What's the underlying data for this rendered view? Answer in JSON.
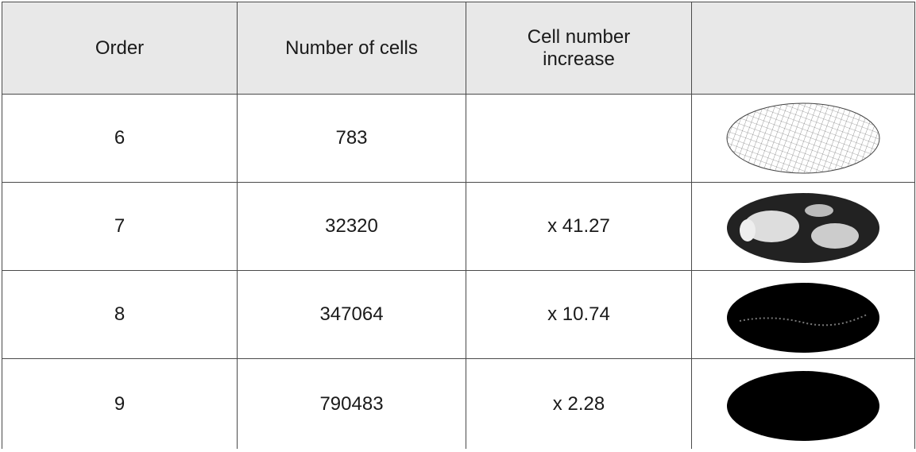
{
  "table": {
    "header": [
      "Order",
      "Number of cells",
      "Cell number increase"
    ],
    "rows": [
      {
        "order": "6",
        "cells": "783"
      },
      {
        "order": "7",
        "cells": "32320",
        "increase": "x 41.27"
      },
      {
        "order": "8",
        "cells": "347064",
        "increase": "x 10.74"
      },
      {
        "order": "9",
        "cells": "790483",
        "increase": "x 2.28"
      }
    ]
  }
}
